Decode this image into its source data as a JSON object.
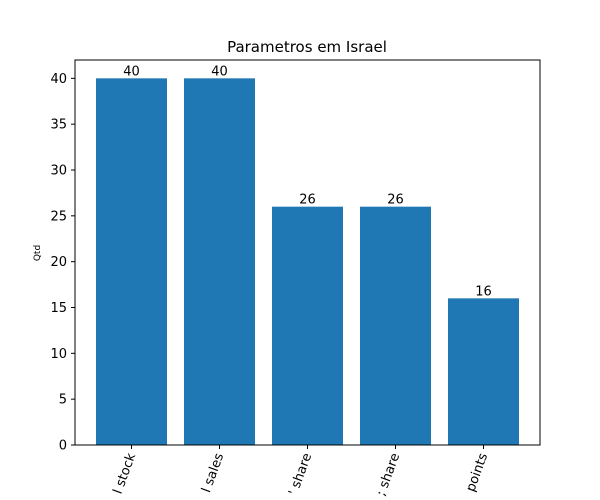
{
  "chart_data": {
    "type": "bar",
    "title": "Parametros em Israel",
    "xlabel": "",
    "ylabel": "Qtd",
    "categories": [
      "l stock",
      "l sales",
      "' share",
      "; share",
      "points"
    ],
    "values": [
      40,
      40,
      26,
      26,
      16
    ],
    "value_labels": [
      "40",
      "40",
      "26",
      "26",
      "16"
    ],
    "ylim": [
      0,
      42
    ],
    "yticks": [
      0,
      5,
      10,
      15,
      20,
      25,
      30,
      35,
      40
    ],
    "ytick_labels": [
      "0",
      "5",
      "10",
      "15",
      "20",
      "25",
      "30",
      "35",
      "40"
    ],
    "xtick_rotation": "rotated ~70 degrees, clipped at bottom",
    "bar_color": "#1f77b4",
    "grid": false,
    "legend": "none"
  }
}
